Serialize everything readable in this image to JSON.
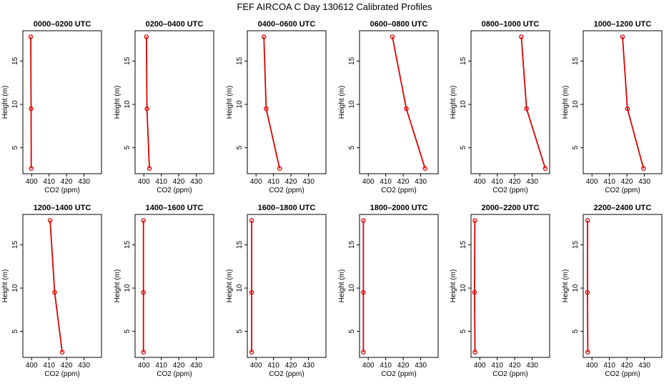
{
  "figure": {
    "title": "FEF AIRCOA C  Day 130612  Calibrated Profiles"
  },
  "chart_data": {
    "type": "line",
    "xlabel": "CO2 (ppm)",
    "ylabel": "Height (m)",
    "xlim": [
      395,
      440
    ],
    "ylim": [
      2,
      18.5
    ],
    "xticks": [
      "400",
      "410",
      "420",
      "430"
    ],
    "yticks": [
      "5",
      "10",
      "15"
    ],
    "line_color": "#dd0000",
    "panels": [
      {
        "title": "0000–0200 UTC",
        "heights": [
          17.8,
          9.5,
          2.6
        ],
        "values": [
          399.5,
          399.7,
          399.8
        ]
      },
      {
        "title": "0200–0400 UTC",
        "heights": [
          17.8,
          9.5,
          2.6
        ],
        "values": [
          401.5,
          401.8,
          403.2
        ]
      },
      {
        "title": "0400–0600 UTC",
        "heights": [
          17.8,
          9.5,
          2.6
        ],
        "values": [
          404.5,
          405.8,
          413.5
        ]
      },
      {
        "title": "0600–0800 UTC",
        "heights": [
          17.8,
          9.5,
          2.6
        ],
        "values": [
          413.8,
          421.8,
          432.5
        ]
      },
      {
        "title": "0800–1000 UTC",
        "heights": [
          17.8,
          9.5,
          2.6
        ],
        "values": [
          423.8,
          426.8,
          437.5
        ]
      },
      {
        "title": "1000–1200 UTC",
        "heights": [
          17.8,
          9.5,
          2.6
        ],
        "values": [
          417.5,
          420.3,
          429.5
        ]
      },
      {
        "title": "1200–1400 UTC",
        "heights": [
          17.8,
          9.5,
          2.6
        ],
        "values": [
          410.6,
          413.2,
          417.5
        ]
      },
      {
        "title": "1400–1600 UTC",
        "heights": [
          17.8,
          9.5,
          2.6
        ],
        "values": [
          399.8,
          399.8,
          399.8
        ]
      },
      {
        "title": "1600–1800 UTC",
        "heights": [
          17.8,
          9.5,
          2.6
        ],
        "values": [
          397.5,
          397.5,
          397.5
        ]
      },
      {
        "title": "1800–2000 UTC",
        "heights": [
          17.8,
          9.5,
          2.6
        ],
        "values": [
          397.2,
          397.2,
          397.2
        ]
      },
      {
        "title": "2000–2200 UTC",
        "heights": [
          17.8,
          9.5,
          2.6
        ],
        "values": [
          397.2,
          397.0,
          397.3
        ]
      },
      {
        "title": "2200–2400 UTC",
        "heights": [
          17.8,
          9.5,
          2.6
        ],
        "values": [
          397.5,
          397.4,
          397.6
        ]
      }
    ]
  }
}
